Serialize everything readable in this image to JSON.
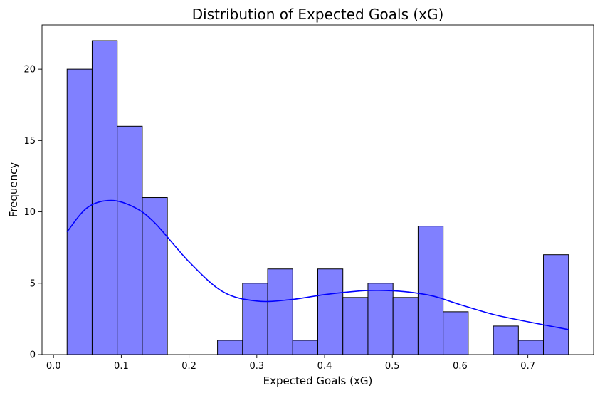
{
  "chart_data": {
    "type": "bar",
    "subtype": "histogram",
    "title": "Distribution of Expected Goals (xG)",
    "xlabel": "Expected Goals (xG)",
    "ylabel": "Frequency",
    "xlim": [
      -0.017,
      0.797
    ],
    "ylim": [
      0,
      23.1
    ],
    "xticks": [
      0.0,
      0.1,
      0.2,
      0.3,
      0.4,
      0.5,
      0.6,
      0.7
    ],
    "xtick_labels": [
      "0.0",
      "0.1",
      "0.2",
      "0.3",
      "0.4",
      "0.5",
      "0.6",
      "0.7"
    ],
    "yticks": [
      0,
      5,
      10,
      15,
      20
    ],
    "ytick_labels": [
      "0",
      "5",
      "10",
      "15",
      "20"
    ],
    "grid": false,
    "legend": "none",
    "bins": {
      "start": 0.02,
      "width": 0.037,
      "counts": [
        20,
        22,
        16,
        11,
        0,
        0,
        1,
        5,
        6,
        1,
        6,
        4,
        5,
        4,
        9,
        3,
        0,
        2,
        1,
        7
      ]
    },
    "kde": {
      "x": [
        0.02,
        0.05,
        0.085,
        0.12,
        0.15,
        0.2,
        0.25,
        0.3,
        0.35,
        0.4,
        0.45,
        0.48,
        0.52,
        0.56,
        0.6,
        0.65,
        0.7,
        0.76
      ],
      "y": [
        8.6,
        10.3,
        10.8,
        10.3,
        9.2,
        6.5,
        4.4,
        3.75,
        3.85,
        4.2,
        4.45,
        4.5,
        4.4,
        4.1,
        3.5,
        2.8,
        2.3,
        1.75
      ]
    },
    "colors": {
      "bar_fill": "#8080ff",
      "bar_edge": "#000000",
      "kde_line": "#0000ff"
    }
  }
}
